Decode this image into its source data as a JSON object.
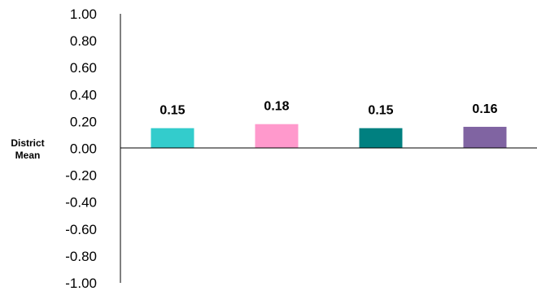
{
  "chart_data": {
    "type": "bar",
    "title": "",
    "xlabel": "",
    "ylabel_lines": [
      "District",
      "Mean"
    ],
    "ylim": [
      -1.0,
      1.0
    ],
    "yticks": [
      "1.00",
      "0.80",
      "0.60",
      "0.40",
      "0.20",
      "0.00",
      "-0.20",
      "-0.40",
      "-0.60",
      "-0.80",
      "-1.00"
    ],
    "grid": false,
    "legend": "none",
    "bars": [
      {
        "value": 0.15,
        "label": "0.15",
        "color": "#33cccc"
      },
      {
        "value": 0.18,
        "label": "0.18",
        "color": "#ff99cc"
      },
      {
        "value": 0.15,
        "label": "0.15",
        "color": "#008080"
      },
      {
        "value": 0.16,
        "label": "0.16",
        "color": "#8064a2"
      }
    ]
  }
}
